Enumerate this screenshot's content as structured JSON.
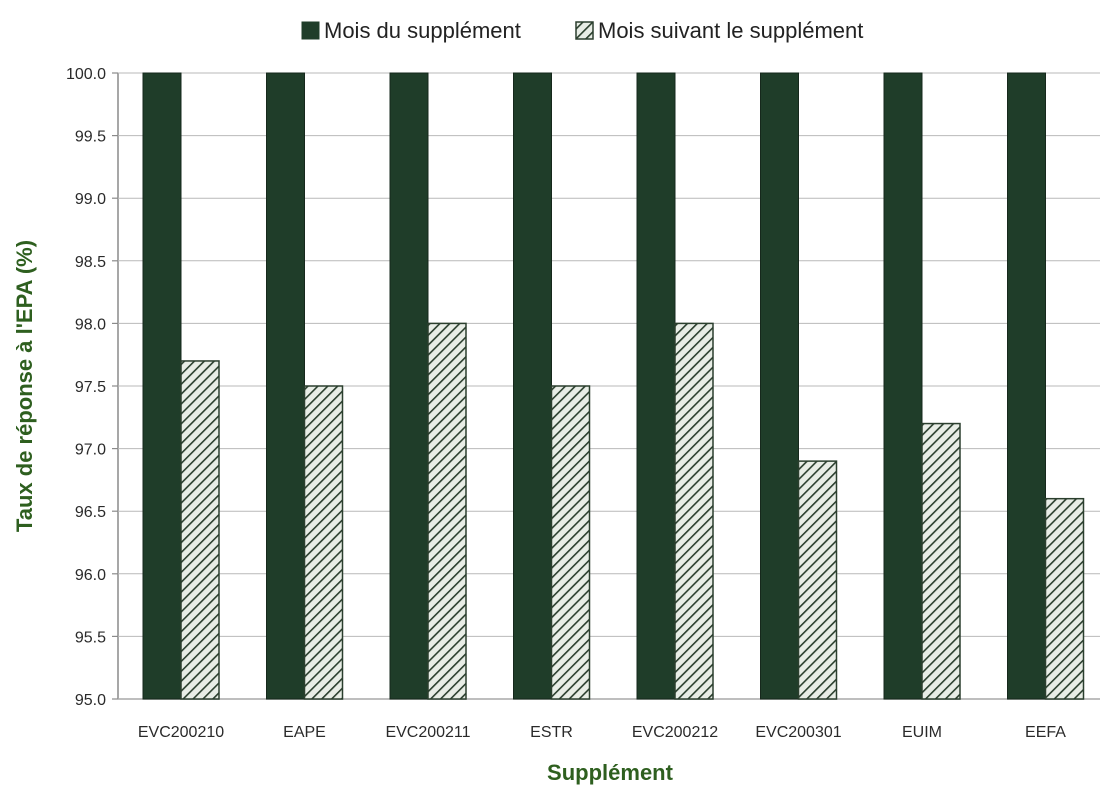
{
  "chart_data": {
    "type": "bar",
    "xlabel": "Supplément",
    "ylabel": "Taux de réponse à l'EPA (%)",
    "ylim": [
      95.0,
      100.0
    ],
    "yticks": [
      "95.0",
      "95.5",
      "96.0",
      "96.5",
      "97.0",
      "97.5",
      "98.0",
      "98.5",
      "99.0",
      "99.5",
      "100.0"
    ],
    "grid": true,
    "legend_position": "top",
    "categories": [
      "EVC200210",
      "EAPE",
      "EVC200211",
      "ESTR",
      "EVC200212",
      "EVC200301",
      "EUIM",
      "EEFA"
    ],
    "series": [
      {
        "name": "Mois du supplément",
        "values": [
          100.0,
          100.0,
          100.0,
          100.0,
          100.0,
          100.0,
          100.0,
          100.0
        ],
        "color": "#1f3d29",
        "pattern": "solid"
      },
      {
        "name": "Mois suivant le supplément",
        "values": [
          97.7,
          97.5,
          98.0,
          97.5,
          98.0,
          96.9,
          97.2,
          96.6
        ],
        "color": "#2b3f2e",
        "pattern": "hatched"
      }
    ]
  }
}
